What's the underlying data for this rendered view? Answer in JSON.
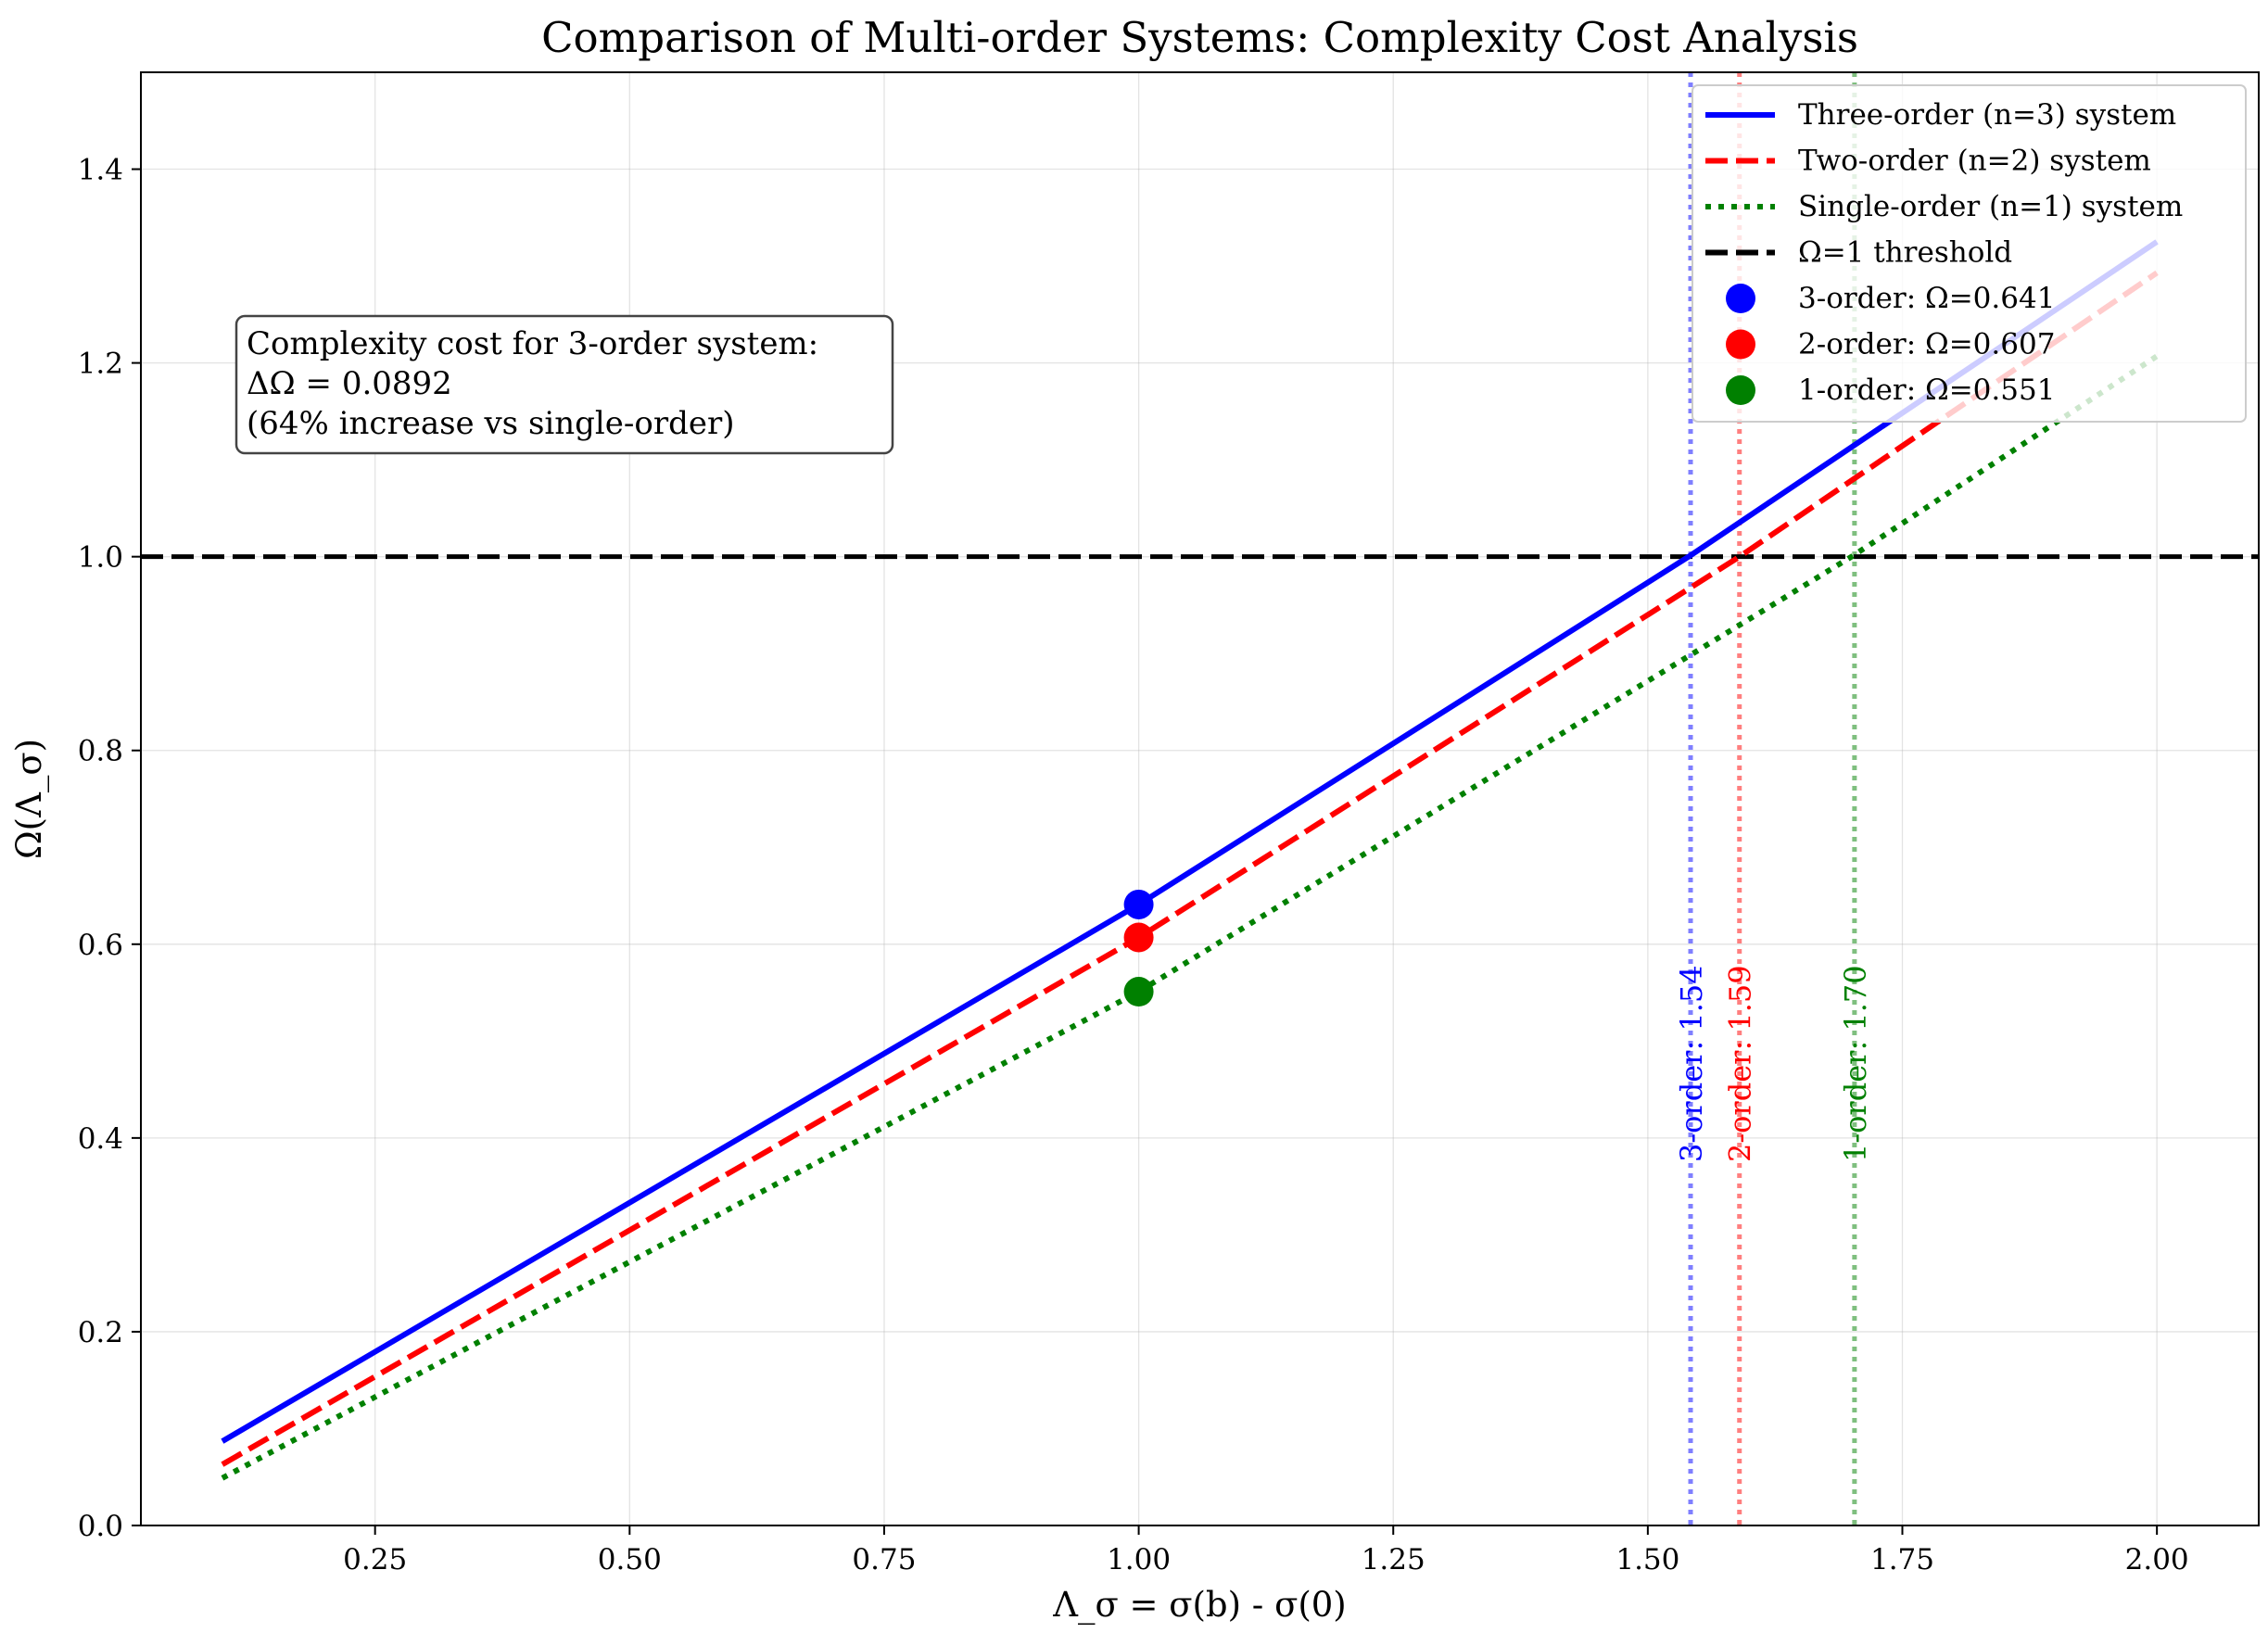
{
  "chart_data": {
    "type": "line",
    "title": "Comparison of Multi-order Systems: Complexity Cost Analysis",
    "xlabel": "Λ_σ = σ(b) - σ(0)",
    "ylabel": "Ω(Λ_σ)",
    "xlim": [
      0.02,
      2.1
    ],
    "ylim": [
      0.0,
      1.5
    ],
    "xticks": [
      0.25,
      0.5,
      0.75,
      1.0,
      1.25,
      1.5,
      1.75,
      2.0
    ],
    "xtick_labels": [
      "0.25",
      "0.50",
      "0.75",
      "1.00",
      "1.25",
      "1.50",
      "1.75",
      "2.00"
    ],
    "yticks": [
      0.0,
      0.2,
      0.4,
      0.6,
      0.8,
      1.0,
      1.2,
      1.4
    ],
    "ytick_labels": [
      "0.0",
      "0.2",
      "0.4",
      "0.6",
      "0.8",
      "1.0",
      "1.2",
      "1.4"
    ],
    "grid": true,
    "legend_position": "top-right",
    "series": [
      {
        "name": "Three-order (n=3) system",
        "color": "#0000ff",
        "style": "solid",
        "x": [
          0.1,
          1.0,
          1.54,
          2.0
        ],
        "y": [
          0.087,
          0.641,
          1.0,
          1.325
        ]
      },
      {
        "name": "Two-order (n=2) system",
        "color": "#ff0000",
        "style": "dashed",
        "x": [
          0.1,
          1.0,
          1.59,
          2.0
        ],
        "y": [
          0.063,
          0.607,
          1.0,
          1.293
        ]
      },
      {
        "name": "Single-order (n=1) system",
        "color": "#008000",
        "style": "dotted",
        "x": [
          0.1,
          1.0,
          1.7,
          2.0
        ],
        "y": [
          0.049,
          0.551,
          1.0,
          1.207
        ]
      }
    ],
    "threshold": {
      "name": "Ω=1 threshold",
      "y": 1.0,
      "color": "#000000",
      "style": "dashed"
    },
    "markers": [
      {
        "label": "3-order: Ω=0.641",
        "x": 1.0,
        "y": 0.641,
        "color": "#0000ff"
      },
      {
        "label": "2-order: Ω=0.607",
        "x": 1.0,
        "y": 0.607,
        "color": "#ff0000"
      },
      {
        "label": "1-order: Ω=0.551",
        "x": 1.0,
        "y": 0.551,
        "color": "#008000"
      }
    ],
    "crossing_lines": [
      {
        "label": "3-order: 1.54",
        "x": 1.542,
        "color": "#0000ff"
      },
      {
        "label": "2-order: 1.59",
        "x": 1.59,
        "color": "#ff0000"
      },
      {
        "label": "1-order: 1.70",
        "x": 1.703,
        "color": "#008000"
      }
    ],
    "annotation": {
      "lines": [
        "Complexity cost for 3-order system:",
        "ΔΩ = 0.0892",
        "(64% increase vs single-order)"
      ],
      "position": "top-left"
    }
  }
}
